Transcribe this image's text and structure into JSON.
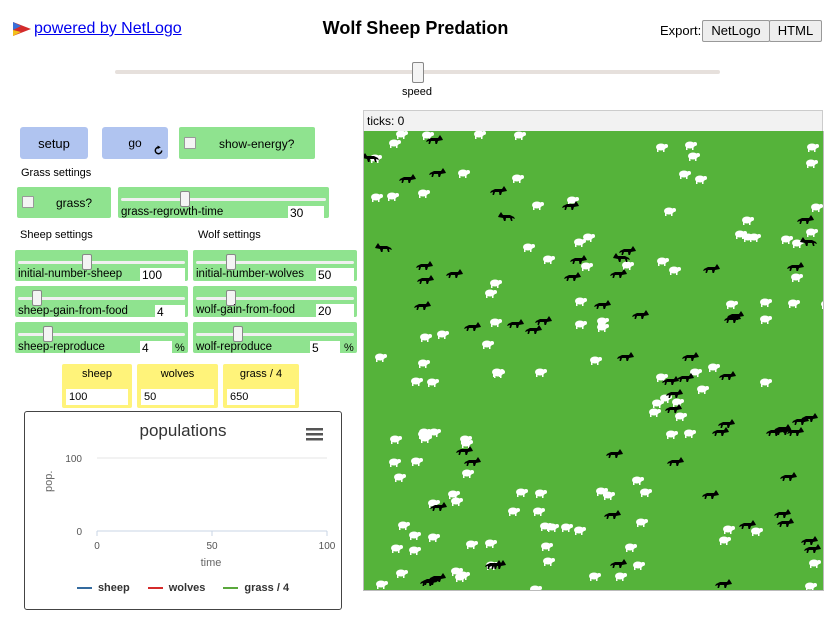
{
  "header": {
    "powered_by": "powered by NetLogo",
    "title": "Wolf Sheep Predation",
    "export_label": "Export:",
    "export_netlogo": "NetLogo",
    "export_html": "HTML"
  },
  "speed": {
    "label": "speed",
    "level": 0.5
  },
  "buttons": {
    "setup": "setup",
    "go": "go"
  },
  "switches": {
    "show_energy": {
      "label": "show-energy?",
      "on": false
    },
    "grass": {
      "label": "grass?",
      "on": false
    }
  },
  "notes": {
    "grass_settings": "Grass settings",
    "sheep_settings": "Sheep settings",
    "wolf_settings": "Wolf settings"
  },
  "sliders": {
    "grass_regrowth_time": {
      "label": "grass-regrowth-time",
      "value": "30",
      "unit": ""
    },
    "initial_number_sheep": {
      "label": "initial-number-sheep",
      "value": "100",
      "unit": ""
    },
    "sheep_gain_from_food": {
      "label": "sheep-gain-from-food",
      "value": "4",
      "unit": ""
    },
    "sheep_reproduce": {
      "label": "sheep-reproduce",
      "value": "4",
      "unit": "%"
    },
    "initial_number_wolves": {
      "label": "initial-number-wolves",
      "value": "50",
      "unit": ""
    },
    "wolf_gain_from_food": {
      "label": "wolf-gain-from-food",
      "value": "20",
      "unit": ""
    },
    "wolf_reproduce": {
      "label": "wolf-reproduce",
      "value": "5",
      "unit": "%"
    }
  },
  "monitors": {
    "sheep": {
      "label": "sheep",
      "value": "100"
    },
    "wolves": {
      "label": "wolves",
      "value": "50"
    },
    "grass": {
      "label": "grass / 4",
      "value": "650"
    }
  },
  "view": {
    "ticks": "ticks: 0",
    "background": "#55b33a"
  },
  "chart_data": {
    "type": "line",
    "title": "populations",
    "xlabel": "time",
    "ylabel": "pop.",
    "xlim": [
      0,
      100
    ],
    "ylim": [
      0,
      100
    ],
    "x_ticks": [
      "0",
      "50",
      "100"
    ],
    "y_ticks": [
      "100",
      "0"
    ],
    "series": [
      {
        "name": "sheep",
        "color": "#346b9f",
        "values": []
      },
      {
        "name": "wolves",
        "color": "#d52b2b",
        "values": []
      },
      {
        "name": "grass / 4",
        "color": "#5aa83c",
        "values": []
      }
    ],
    "legend": "bottom"
  },
  "colors": {
    "button": "#b0c4f0",
    "widget_green": "#8fe38f",
    "monitor": "#fff37a"
  }
}
